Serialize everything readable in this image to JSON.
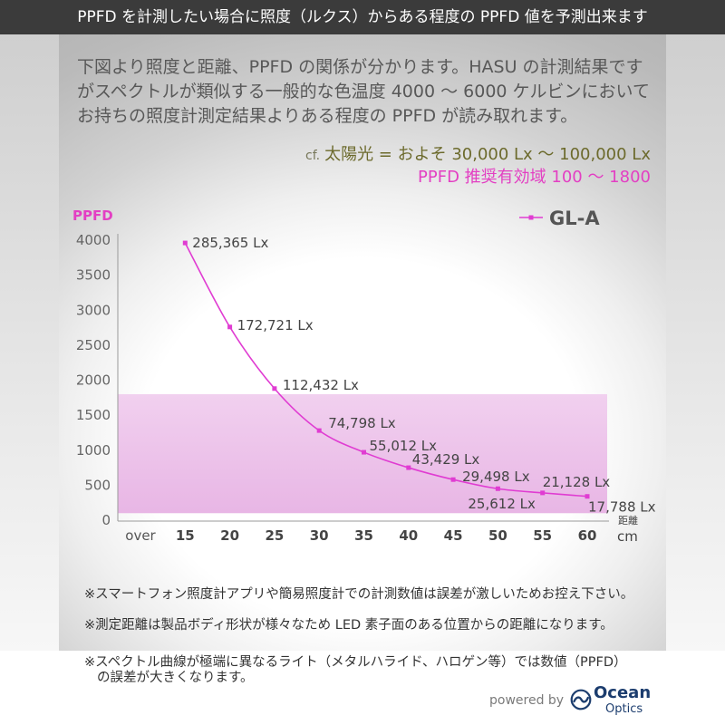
{
  "header": {
    "title": "PPFD を計測したい場合に照度（ルクス）からある程度の PPFD 値を予測出来ます"
  },
  "intro": {
    "lines": [
      "下図より照度と距離、PPFD の関係が分かります。HASU の計測結果です",
      "がスペクトルが類似する一般的な色温度 4000 ～ 6000 ケルビンにおいて",
      "お持ちの照度計測定結果よりある程度の PPFD が読み取れます。"
    ]
  },
  "reference": {
    "cf_label": "cf.",
    "sunlight": "太陽光 = およそ 30,000 Lx ～ 100,000 Lx",
    "recommended": "PPFD 推奨有効域 100 ～ 1800"
  },
  "chart_data": {
    "type": "line",
    "ylabel": "PPFD",
    "xlabel": "距離",
    "x_unit": "cm",
    "categories": [
      "over",
      "15",
      "20",
      "25",
      "30",
      "35",
      "40",
      "45",
      "50",
      "55",
      "60"
    ],
    "yticks": [
      0,
      500,
      1000,
      1500,
      2000,
      2500,
      3000,
      3500,
      4000
    ],
    "ylim": [
      0,
      4000
    ],
    "grid": false,
    "recommended_range": [
      100,
      1800
    ],
    "legend_position": "top-right",
    "series": [
      {
        "name": "GL-A",
        "color": "#e03cd2",
        "points": [
          {
            "x": 15,
            "y": 3960,
            "label": "285,365 Lx"
          },
          {
            "x": 20,
            "y": 2760,
            "label": "172,721 Lx"
          },
          {
            "x": 25,
            "y": 1880,
            "label": "112,432 Lx"
          },
          {
            "x": 30,
            "y": 1280,
            "label": "74,798 Lx"
          },
          {
            "x": 35,
            "y": 970,
            "label": "55,012 Lx"
          },
          {
            "x": 40,
            "y": 750,
            "label": "43,429 Lx"
          },
          {
            "x": 45,
            "y": 580,
            "label": "29,498 Lx"
          },
          {
            "x": 50,
            "y": 450,
            "label": "25,612 Lx"
          },
          {
            "x": 55,
            "y": 390,
            "label": "21,128 Lx"
          },
          {
            "x": 60,
            "y": 340,
            "label": "17,788 Lx"
          }
        ]
      }
    ]
  },
  "notes": [
    "※スマートフォン照度計アプリや簡易照度計での計測数値は誤差が激しいためお控え下さい。",
    "※測定距離は製品ボディ形状が様々なため LED 素子面のある位置からの距離になります。",
    "※スペクトル曲線が極端に異なるライト（メタルハライド、ハロゲン等）では数値（PPFD）",
    "の誤差が大きくなります。"
  ],
  "footer": {
    "powered_by": "powered by",
    "logo": {
      "icon": "ocean-optics-swirl-icon",
      "name_line1": "Ocean",
      "name_line2": "Optics"
    }
  },
  "colors": {
    "header_bg": "#3b3b3b",
    "accent_magenta": "#e33fc3",
    "reference_olive": "#6c6a2c",
    "recommended_band": "#f1d0ef",
    "logo_navy": "#1c3d6e"
  }
}
